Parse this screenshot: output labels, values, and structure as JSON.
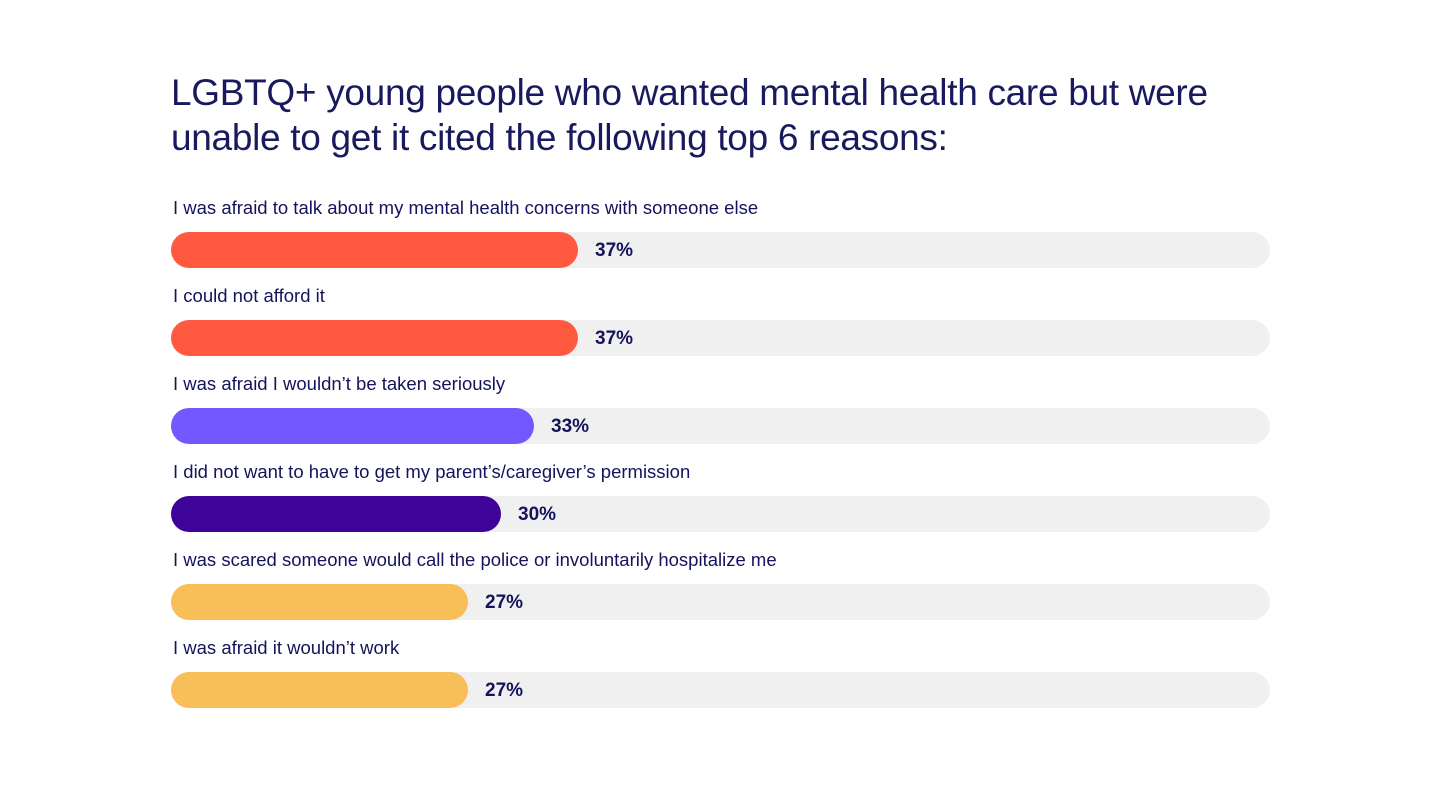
{
  "chart_data": {
    "type": "bar",
    "orientation": "horizontal",
    "title": "LGBTQ+ young people who wanted mental health care but were unable to get it cited the following top 6 reasons:",
    "categories": [
      "I was afraid to talk about my mental health concerns with someone else",
      "I could not afford it",
      "I was afraid I wouldn’t be taken seriously",
      "I did not want to have to get my parent’s/caregiver’s permission",
      "I was scared someone would call the police or involuntarily hospitalize me",
      "I was afraid it wouldn’t work"
    ],
    "values": [
      37,
      37,
      33,
      30,
      27,
      27
    ],
    "value_labels": [
      "37%",
      "37%",
      "33%",
      "30%",
      "27%",
      "27%"
    ],
    "bar_colors": [
      "#ff5a3f",
      "#ff5a3f",
      "#7357ff",
      "#3e0499",
      "#f8be57",
      "#f8be57"
    ],
    "track_color": "#f0f0f0",
    "xlim": [
      0,
      100
    ],
    "unit": "%",
    "grid": false,
    "legend": "none"
  }
}
